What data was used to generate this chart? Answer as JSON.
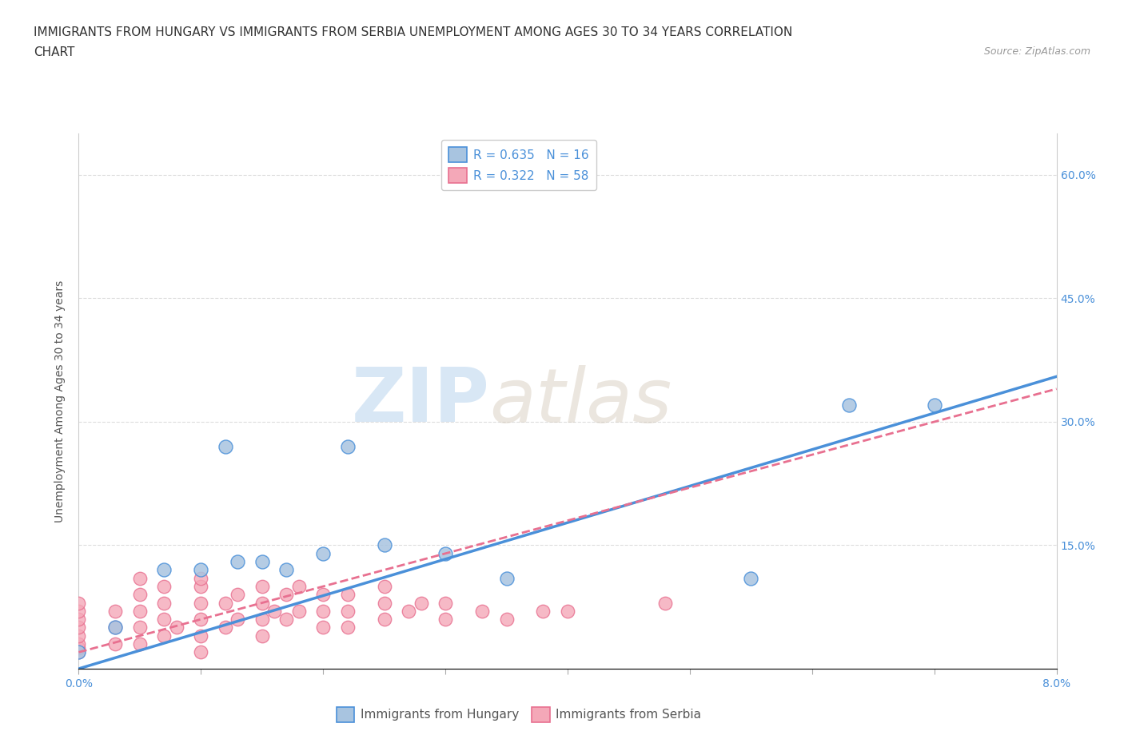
{
  "title_line1": "IMMIGRANTS FROM HUNGARY VS IMMIGRANTS FROM SERBIA UNEMPLOYMENT AMONG AGES 30 TO 34 YEARS CORRELATION",
  "title_line2": "CHART",
  "source": "Source: ZipAtlas.com",
  "ylabel": "Unemployment Among Ages 30 to 34 years",
  "xlim": [
    0.0,
    0.08
  ],
  "ylim": [
    0.0,
    0.65
  ],
  "xticks": [
    0.0,
    0.01,
    0.02,
    0.03,
    0.04,
    0.05,
    0.06,
    0.07,
    0.08
  ],
  "xticklabels": [
    "0.0%",
    "",
    "",
    "",
    "",
    "",
    "",
    "",
    "8.0%"
  ],
  "ytick_positions": [
    0.15,
    0.3,
    0.45,
    0.6
  ],
  "ytick_labels": [
    "15.0%",
    "30.0%",
    "45.0%",
    "60.0%"
  ],
  "right_ytick_positions": [
    0.15,
    0.3,
    0.45,
    0.6
  ],
  "right_ytick_labels": [
    "15.0%",
    "30.0%",
    "45.0%",
    "60.0%"
  ],
  "hungary_color": "#a8c4e0",
  "serbia_color": "#f4a8b8",
  "hungary_line_color": "#4a90d9",
  "serbia_line_color": "#e87090",
  "watermark_zip": "ZIP",
  "watermark_atlas": "atlas",
  "legend_R_hungary": "R = 0.635",
  "legend_N_hungary": "N = 16",
  "legend_R_serbia": "R = 0.322",
  "legend_N_serbia": "N = 58",
  "hungary_scatter_x": [
    0.0,
    0.003,
    0.007,
    0.01,
    0.012,
    0.013,
    0.015,
    0.017,
    0.02,
    0.022,
    0.025,
    0.03,
    0.035,
    0.055,
    0.063,
    0.07
  ],
  "hungary_scatter_y": [
    0.02,
    0.05,
    0.12,
    0.12,
    0.27,
    0.13,
    0.13,
    0.12,
    0.14,
    0.27,
    0.15,
    0.14,
    0.11,
    0.11,
    0.32,
    0.32
  ],
  "serbia_scatter_x": [
    0.0,
    0.0,
    0.0,
    0.0,
    0.0,
    0.0,
    0.0,
    0.0,
    0.003,
    0.003,
    0.003,
    0.005,
    0.005,
    0.005,
    0.005,
    0.005,
    0.007,
    0.007,
    0.007,
    0.007,
    0.008,
    0.01,
    0.01,
    0.01,
    0.01,
    0.01,
    0.01,
    0.012,
    0.012,
    0.013,
    0.013,
    0.015,
    0.015,
    0.015,
    0.015,
    0.016,
    0.017,
    0.017,
    0.018,
    0.018,
    0.02,
    0.02,
    0.02,
    0.022,
    0.022,
    0.022,
    0.025,
    0.025,
    0.025,
    0.027,
    0.028,
    0.03,
    0.03,
    0.033,
    0.035,
    0.038,
    0.04,
    0.048
  ],
  "serbia_scatter_y": [
    0.02,
    0.025,
    0.03,
    0.04,
    0.05,
    0.06,
    0.07,
    0.08,
    0.03,
    0.05,
    0.07,
    0.03,
    0.05,
    0.07,
    0.09,
    0.11,
    0.04,
    0.06,
    0.08,
    0.1,
    0.05,
    0.02,
    0.04,
    0.06,
    0.08,
    0.1,
    0.11,
    0.05,
    0.08,
    0.06,
    0.09,
    0.04,
    0.06,
    0.08,
    0.1,
    0.07,
    0.06,
    0.09,
    0.07,
    0.1,
    0.05,
    0.07,
    0.09,
    0.05,
    0.07,
    0.09,
    0.06,
    0.08,
    0.1,
    0.07,
    0.08,
    0.06,
    0.08,
    0.07,
    0.06,
    0.07,
    0.07,
    0.08
  ],
  "hungary_line_x": [
    0.0,
    0.08
  ],
  "hungary_line_y": [
    0.0,
    0.355
  ],
  "serbia_line_x": [
    0.0,
    0.08
  ],
  "serbia_line_y": [
    0.02,
    0.34
  ],
  "title_fontsize": 11,
  "axis_label_fontsize": 10,
  "tick_fontsize": 10,
  "legend_fontsize": 11,
  "background_color": "#ffffff",
  "grid_color": "#dddddd"
}
